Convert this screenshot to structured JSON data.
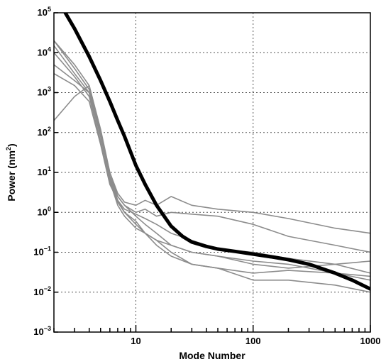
{
  "chart_data": {
    "type": "line",
    "title": "",
    "xlabel": "Mode Number",
    "ylabel": {
      "prefix": "Power (nm",
      "sup": "2",
      "suffix": ")"
    },
    "x_scale": "log",
    "y_scale": "log",
    "xlim": [
      2,
      1000
    ],
    "ylim": [
      0.001,
      100000
    ],
    "grid": true,
    "x_ticks": [
      {
        "value": 10,
        "label": "10"
      },
      {
        "value": 100,
        "label": "100"
      },
      {
        "value": 1000,
        "label": "1000"
      }
    ],
    "y_ticks": [
      {
        "value": 0.001,
        "base": "10",
        "exp": "−3"
      },
      {
        "value": 0.01,
        "base": "10",
        "exp": "−2"
      },
      {
        "value": 0.1,
        "base": "10",
        "exp": "−1"
      },
      {
        "value": 1,
        "base": "10",
        "exp": "0"
      },
      {
        "value": 10,
        "base": "10",
        "exp": "1"
      },
      {
        "value": 100,
        "base": "10",
        "exp": "2"
      },
      {
        "value": 1000,
        "base": "10",
        "exp": "3"
      },
      {
        "value": 10000,
        "base": "10",
        "exp": "4"
      },
      {
        "value": 100000,
        "base": "10",
        "exp": "5"
      }
    ],
    "colors": {
      "model": "#000000",
      "measured": "#8c8c8c",
      "grid": "#555555"
    },
    "model_curve": {
      "x": [
        2.5,
        3,
        4,
        5,
        6,
        7,
        8,
        10,
        12,
        15,
        20,
        25,
        30,
        40,
        50,
        70,
        100,
        150,
        200,
        300,
        500,
        700,
        1000
      ],
      "y": [
        100000,
        40000,
        8000,
        2000,
        600,
        200,
        80,
        15,
        5,
        1.5,
        0.45,
        0.25,
        0.18,
        0.14,
        0.12,
        0.105,
        0.09,
        0.075,
        0.065,
        0.05,
        0.03,
        0.02,
        0.012
      ]
    },
    "series": [
      {
        "x": [
          2,
          3,
          4,
          5,
          6,
          7,
          8,
          10,
          12,
          15,
          20,
          30,
          50,
          100,
          200,
          500,
          1000
        ],
        "y": [
          20000,
          5000,
          1500,
          120,
          10,
          3,
          1.8,
          1.5,
          2,
          1.5,
          2.5,
          1.5,
          1.2,
          1,
          0.7,
          0.4,
          0.3
        ]
      },
      {
        "x": [
          2,
          3,
          4,
          5,
          6,
          7,
          8,
          10,
          12,
          15,
          20,
          30,
          50,
          100,
          200,
          500,
          1000
        ],
        "y": [
          15000,
          3000,
          1000,
          80,
          8,
          2.5,
          1.5,
          1,
          1.2,
          0.8,
          1,
          0.9,
          0.8,
          0.5,
          0.25,
          0.15,
          0.1
        ]
      },
      {
        "x": [
          2,
          3,
          4,
          5,
          6,
          7,
          8,
          10,
          12,
          15,
          20,
          30,
          50,
          100,
          200,
          500,
          1000
        ],
        "y": [
          3000,
          1500,
          600,
          50,
          5,
          2,
          1.2,
          0.9,
          0.7,
          0.5,
          0.3,
          0.2,
          0.12,
          0.1,
          0.07,
          0.05,
          0.03
        ]
      },
      {
        "x": [
          2,
          3,
          4,
          5,
          6,
          7,
          8,
          10,
          12,
          15,
          20,
          30,
          50,
          100,
          200,
          500,
          1000
        ],
        "y": [
          200,
          800,
          1500,
          100,
          10,
          2.5,
          1.5,
          0.8,
          0.5,
          0.3,
          0.15,
          0.1,
          0.08,
          0.05,
          0.04,
          0.05,
          0.06
        ]
      },
      {
        "x": [
          2,
          3,
          4,
          5,
          6,
          7,
          8,
          10,
          12,
          15,
          20,
          30,
          50,
          100,
          200,
          500,
          1000
        ],
        "y": [
          5000,
          2000,
          1000,
          80,
          8,
          2,
          1,
          0.5,
          0.3,
          0.2,
          0.1,
          0.05,
          0.04,
          0.03,
          0.035,
          0.03,
          0.02
        ]
      },
      {
        "x": [
          2,
          3,
          4,
          5,
          6,
          7,
          8,
          10,
          12,
          15,
          20,
          30,
          50,
          100,
          200,
          500,
          1000
        ],
        "y": [
          20000,
          4000,
          1200,
          100,
          7,
          1.8,
          1,
          0.6,
          0.3,
          0.15,
          0.08,
          0.05,
          0.04,
          0.02,
          0.02,
          0.015,
          0.01
        ]
      },
      {
        "x": [
          2,
          3,
          4,
          5,
          6,
          7,
          8,
          10,
          12,
          15,
          20,
          30,
          50,
          100,
          200,
          500,
          1000
        ],
        "y": [
          10000,
          2500,
          800,
          60,
          6,
          1.5,
          0.8,
          0.4,
          0.3,
          0.2,
          0.15,
          0.1,
          0.08,
          0.06,
          0.05,
          0.03,
          0.025
        ]
      }
    ]
  }
}
